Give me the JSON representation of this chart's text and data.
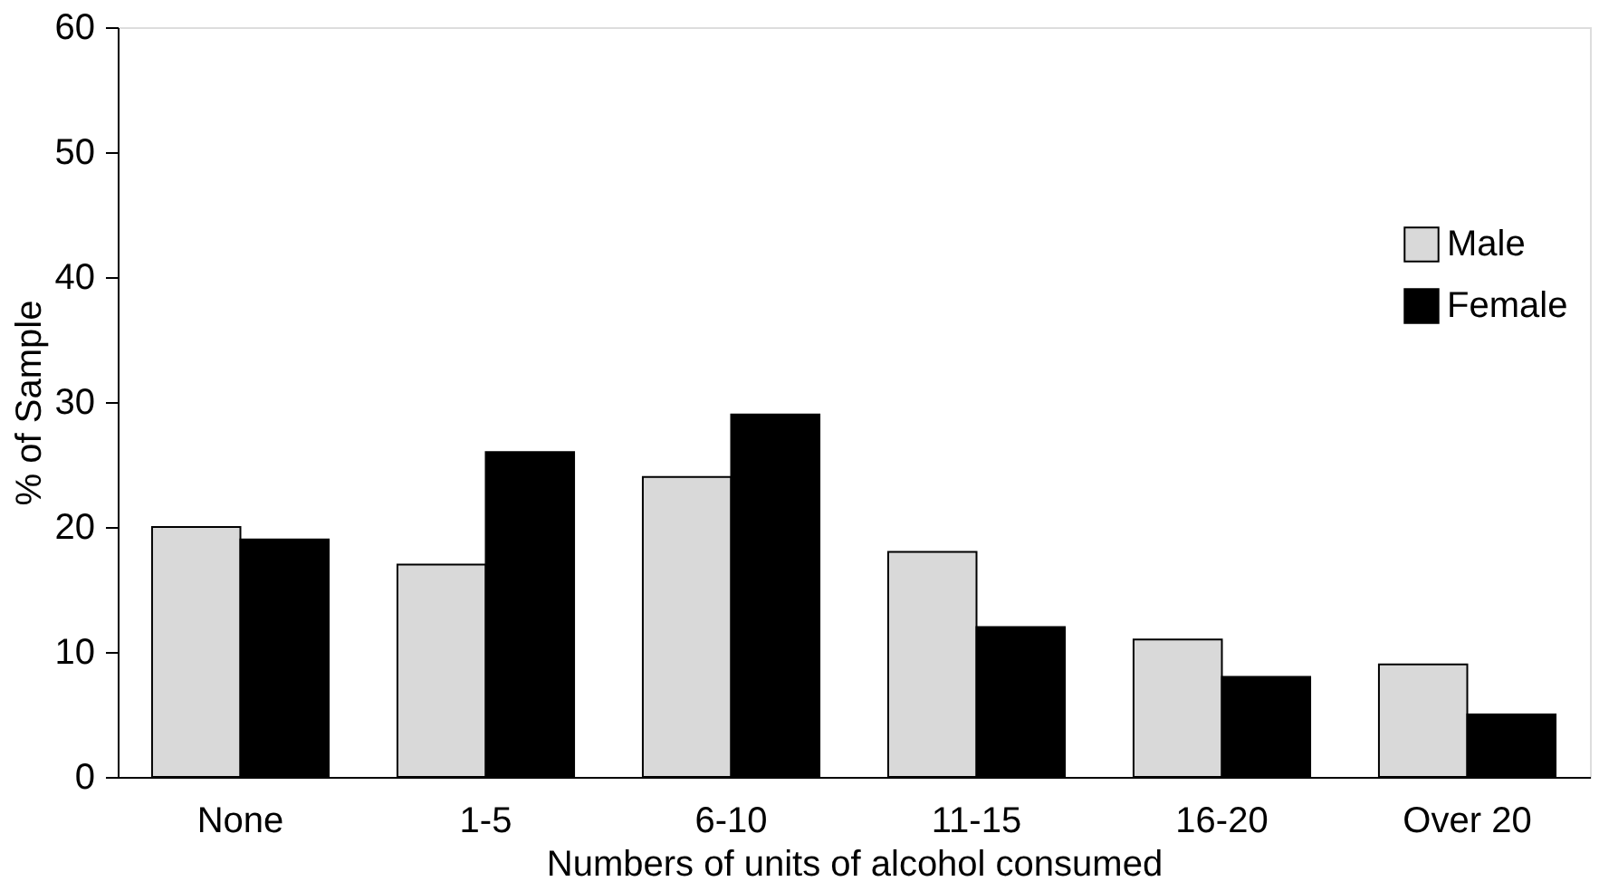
{
  "chart_data": {
    "type": "bar",
    "xlabel": "Numbers of units of alcohol consumed",
    "ylabel": "% of Sample",
    "categories": [
      "None",
      "1-5",
      "6-10",
      "11-15",
      "16-20",
      "Over 20"
    ],
    "series": [
      {
        "name": "Male",
        "color": "#d9d9d9",
        "values": [
          20,
          17,
          24,
          18,
          11,
          9
        ]
      },
      {
        "name": "Female",
        "color": "#000000",
        "values": [
          19,
          26,
          29,
          12,
          8,
          5
        ]
      }
    ],
    "ylim": [
      0,
      60
    ],
    "yticks": [
      0,
      10,
      20,
      30,
      40,
      50,
      60
    ],
    "grid": false,
    "legend": "right"
  }
}
